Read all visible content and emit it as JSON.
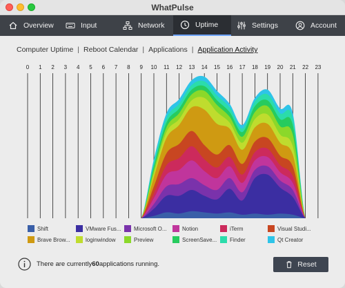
{
  "window": {
    "title": "WhatPulse"
  },
  "tabs": [
    {
      "label": "Overview",
      "icon": "home-icon",
      "active": false
    },
    {
      "label": "Input",
      "icon": "keyboard-icon",
      "active": false
    },
    {
      "label": "Network",
      "icon": "network-icon",
      "active": false
    },
    {
      "label": "Uptime",
      "icon": "clock-icon",
      "active": true
    },
    {
      "label": "Settings",
      "icon": "sliders-icon",
      "active": false
    },
    {
      "label": "Account",
      "icon": "user-icon",
      "active": false
    }
  ],
  "subnav": {
    "items": [
      "Computer Uptime",
      "Reboot Calendar",
      "Applications",
      "Application Activity"
    ],
    "separator": "|",
    "active_index": 3
  },
  "chart_data": {
    "type": "area",
    "stacked": true,
    "x": [
      0,
      1,
      2,
      3,
      4,
      5,
      6,
      7,
      8,
      9,
      10,
      11,
      12,
      13,
      14,
      15,
      16,
      17,
      18,
      19,
      20,
      21,
      22,
      23
    ],
    "x_ticks": [
      "0",
      "1",
      "2",
      "3",
      "4",
      "5",
      "6",
      "7",
      "8",
      "9",
      "10",
      "11",
      "12",
      "13",
      "14",
      "15",
      "16",
      "17",
      "18",
      "19",
      "20",
      "21",
      "22",
      "23"
    ],
    "grid": "vertical",
    "legend_position": "bottom",
    "series": [
      {
        "name": "Shift",
        "color": "#3a5fa8",
        "values": [
          0,
          0,
          0,
          0,
          0,
          0,
          0,
          0,
          0,
          0,
          2,
          5,
          4,
          6,
          5,
          4,
          5,
          3,
          4,
          3,
          4,
          3,
          0,
          0
        ]
      },
      {
        "name": "VMware Fus...",
        "color": "#3b2ea2",
        "values": [
          0,
          0,
          0,
          0,
          0,
          0,
          0,
          0,
          0,
          0,
          6,
          14,
          15,
          18,
          14,
          12,
          20,
          12,
          30,
          34,
          22,
          15,
          0,
          0
        ]
      },
      {
        "name": "Microsoft O...",
        "color": "#7a32ab",
        "values": [
          0,
          0,
          0,
          0,
          0,
          0,
          0,
          0,
          0,
          0,
          4,
          8,
          10,
          10,
          9,
          8,
          9,
          7,
          7,
          7,
          6,
          6,
          0,
          0
        ]
      },
      {
        "name": "Notion",
        "color": "#c0359c",
        "values": [
          0,
          0,
          0,
          0,
          0,
          0,
          0,
          0,
          0,
          0,
          5,
          10,
          12,
          15,
          12,
          10,
          10,
          8,
          8,
          8,
          7,
          6,
          0,
          0
        ]
      },
      {
        "name": "iTerm",
        "color": "#cc2a5c",
        "values": [
          0,
          0,
          0,
          0,
          0,
          0,
          0,
          0,
          0,
          0,
          4,
          8,
          10,
          12,
          10,
          9,
          8,
          7,
          7,
          7,
          6,
          6,
          0,
          0
        ]
      },
      {
        "name": "Visual Studi...",
        "color": "#c84621",
        "values": [
          0,
          0,
          0,
          0,
          0,
          0,
          0,
          0,
          0,
          0,
          6,
          10,
          12,
          13,
          12,
          11,
          10,
          9,
          9,
          9,
          8,
          8,
          0,
          0
        ]
      },
      {
        "name": "Brave Brow...",
        "color": "#cf9a12",
        "values": [
          0,
          0,
          0,
          0,
          0,
          0,
          0,
          0,
          0,
          0,
          8,
          13,
          16,
          20,
          30,
          26,
          14,
          12,
          12,
          12,
          11,
          10,
          0,
          0
        ]
      },
      {
        "name": "loginwindow",
        "color": "#bfdc2e",
        "values": [
          0,
          0,
          0,
          0,
          0,
          0,
          0,
          0,
          0,
          0,
          3,
          5,
          5,
          6,
          10,
          10,
          5,
          6,
          7,
          8,
          7,
          7,
          0,
          0
        ]
      },
      {
        "name": "Preview",
        "color": "#8bd82a",
        "values": [
          0,
          0,
          0,
          0,
          0,
          0,
          0,
          0,
          0,
          0,
          3,
          4,
          5,
          5,
          6,
          6,
          5,
          5,
          6,
          7,
          7,
          10,
          0,
          0
        ]
      },
      {
        "name": "ScreenSave...",
        "color": "#27cb5e",
        "values": [
          0,
          0,
          0,
          0,
          0,
          0,
          0,
          0,
          0,
          0,
          3,
          4,
          4,
          4,
          4,
          4,
          4,
          4,
          5,
          5,
          6,
          8,
          0,
          0
        ]
      },
      {
        "name": "Finder",
        "color": "#2bdcab",
        "values": [
          0,
          0,
          0,
          0,
          0,
          0,
          0,
          0,
          0,
          0,
          3,
          4,
          4,
          4,
          4,
          4,
          4,
          3,
          4,
          5,
          5,
          6,
          0,
          0
        ]
      },
      {
        "name": "Qt Creator",
        "color": "#2ec4e8",
        "values": [
          0,
          0,
          0,
          0,
          0,
          0,
          0,
          0,
          0,
          0,
          3,
          4,
          4,
          4,
          4,
          4,
          3,
          3,
          3,
          4,
          4,
          4,
          0,
          0
        ]
      }
    ]
  },
  "footer": {
    "info_prefix": "There are currently ",
    "app_count": "60",
    "info_suffix": " applications running.",
    "reset_label": "Reset"
  },
  "colors": {
    "toolbar_bg": "#3e4248",
    "toolbar_active_bg": "#2b2e33",
    "toolbar_accent": "#6da3ff",
    "reset_button_bg": "#3e4551"
  }
}
